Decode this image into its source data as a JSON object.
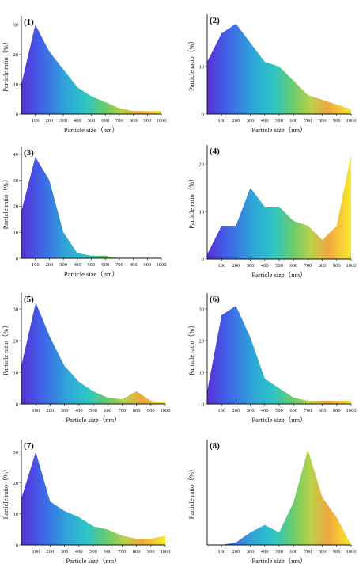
{
  "figure": {
    "x_unit_label": "Particle size（nm）",
    "y_unit_label": "Particle ratio（%）"
  },
  "chart_data": [
    {
      "type": "area",
      "panel_label": "(1)",
      "xlabel": "Particle size（nm）",
      "ylabel": "Particle ratio（%）",
      "x": [
        0,
        100,
        200,
        300,
        400,
        500,
        600,
        700,
        800,
        900,
        1000
      ],
      "values": [
        10,
        30,
        21,
        15,
        9,
        6,
        4,
        2,
        1,
        1,
        1
      ],
      "xticks": [
        "100",
        "200",
        "300",
        "400",
        "500",
        "600",
        "700",
        "800",
        "900",
        "1000"
      ],
      "yticks": [
        "0",
        "10",
        "20",
        "30"
      ],
      "xlim": [
        0,
        1000
      ],
      "ylim": [
        0,
        33
      ],
      "grid": false,
      "gradient": "horizontal: blue-violet → cyan → green → yellow"
    },
    {
      "type": "area",
      "panel_label": "(2)",
      "xlabel": "Particle size（nm）",
      "ylabel": "Particle ratio（%）",
      "x": [
        0,
        100,
        200,
        300,
        400,
        500,
        600,
        700,
        800,
        900,
        1000
      ],
      "values": [
        11,
        17,
        19,
        15,
        11,
        10,
        7,
        4,
        3,
        2,
        1
      ],
      "xticks": [
        "100",
        "200",
        "300",
        "400",
        "500",
        "600",
        "700",
        "800",
        "900",
        "1000"
      ],
      "yticks": [
        "0",
        "10"
      ],
      "xlim": [
        0,
        1000
      ],
      "ylim": [
        0,
        21
      ],
      "grid": false,
      "gradient": "horizontal: blue-violet → cyan → green → yellow"
    },
    {
      "type": "area",
      "panel_label": "(3)",
      "xlabel": "Particle size（nm）",
      "ylabel": "Particle ratio（%）",
      "x": [
        0,
        100,
        200,
        300,
        400,
        500,
        600,
        700,
        800,
        900,
        1000
      ],
      "values": [
        18,
        39,
        30,
        10,
        2,
        1,
        1,
        0,
        0,
        0,
        0
      ],
      "xticks": [
        "100",
        "200",
        "300",
        "400",
        "500",
        "600",
        "700",
        "800",
        "900",
        "1000"
      ],
      "yticks": [
        "0",
        "10",
        "20",
        "30",
        "40"
      ],
      "xlim": [
        0,
        1000
      ],
      "ylim": [
        0,
        43
      ],
      "grid": false,
      "gradient": "horizontal: blue-violet → cyan → green → yellow"
    },
    {
      "type": "area",
      "panel_label": "(4)",
      "xlabel": "Particle size（nm）",
      "ylabel": "Particle ratio（%）",
      "x": [
        0,
        100,
        200,
        300,
        400,
        500,
        600,
        700,
        800,
        900,
        1000
      ],
      "values": [
        1,
        7,
        7,
        15,
        11,
        11,
        8,
        7,
        4,
        7,
        22
      ],
      "xticks": [
        "100",
        "200",
        "300",
        "400",
        "500",
        "600",
        "700",
        "800",
        "900",
        "1000"
      ],
      "yticks": [
        "0",
        "10",
        "20"
      ],
      "xlim": [
        0,
        1000
      ],
      "ylim": [
        0,
        24
      ],
      "grid": false,
      "gradient": "horizontal: blue-violet → cyan → green → yellow"
    },
    {
      "type": "area",
      "panel_label": "(5)",
      "xlabel": "Particle size（nm）",
      "ylabel": "Particle ratio（%）",
      "x": [
        0,
        100,
        200,
        300,
        400,
        500,
        600,
        700,
        800,
        900,
        1000
      ],
      "values": [
        12,
        32,
        21,
        12,
        7,
        4,
        2,
        1.5,
        4,
        1,
        0.5
      ],
      "xticks": [
        "100",
        "200",
        "300",
        "400",
        "500",
        "600",
        "700",
        "800",
        "900",
        "1000"
      ],
      "yticks": [
        "0",
        "10",
        "20",
        "30"
      ],
      "xlim": [
        0,
        1000
      ],
      "ylim": [
        0,
        35
      ],
      "grid": false,
      "gradient": "horizontal: blue-violet → cyan → green → yellow"
    },
    {
      "type": "area",
      "panel_label": "(6)",
      "xlabel": "Particle size（nm）",
      "ylabel": "Particle ratio（%）",
      "x": [
        0,
        100,
        200,
        300,
        400,
        500,
        600,
        700,
        800,
        900,
        1000
      ],
      "values": [
        4,
        28,
        31,
        21,
        8,
        5,
        2,
        1,
        1,
        1,
        1
      ],
      "xticks": [
        "100",
        "200",
        "300",
        "400",
        "500",
        "600",
        "700",
        "800",
        "900",
        "1000"
      ],
      "yticks": [
        "0",
        "10",
        "20",
        "30"
      ],
      "xlim": [
        0,
        1000
      ],
      "ylim": [
        0,
        35
      ],
      "grid": false,
      "gradient": "horizontal: blue-violet → cyan → green → yellow"
    },
    {
      "type": "area",
      "panel_label": "(7)",
      "xlabel": "Particle size（nm）",
      "ylabel": "Particle ratio（%）",
      "x": [
        0,
        100,
        200,
        300,
        400,
        500,
        600,
        700,
        800,
        900,
        1000
      ],
      "values": [
        15,
        30,
        14,
        11,
        9,
        6,
        5,
        3,
        2,
        2,
        3
      ],
      "xticks": [
        "100",
        "200",
        "300",
        "400",
        "500",
        "600",
        "700",
        "800",
        "900",
        "1000"
      ],
      "yticks": [
        "0",
        "10",
        "20",
        "30"
      ],
      "xlim": [
        0,
        1000
      ],
      "ylim": [
        0,
        34
      ],
      "grid": false,
      "gradient": "horizontal: blue-violet → cyan → green → yellow"
    },
    {
      "type": "area",
      "panel_label": "(8)",
      "xlabel": "Particle size（nm）",
      "ylabel": "Particle ratio（%）",
      "x": [
        0,
        100,
        200,
        300,
        400,
        500,
        600,
        700,
        800,
        900,
        1000
      ],
      "values": [
        0,
        0,
        1,
        5,
        8,
        5,
        17,
        38,
        19,
        11,
        0
      ],
      "xticks": [
        "100",
        "200",
        "300",
        "400",
        "500",
        "600",
        "700",
        "800",
        "900",
        "1000"
      ],
      "yticks": [],
      "xlim": [
        0,
        1000
      ],
      "ylim": [
        0,
        42
      ],
      "grid": false,
      "gradient": "horizontal: blue-violet → cyan → green → yellow"
    }
  ]
}
